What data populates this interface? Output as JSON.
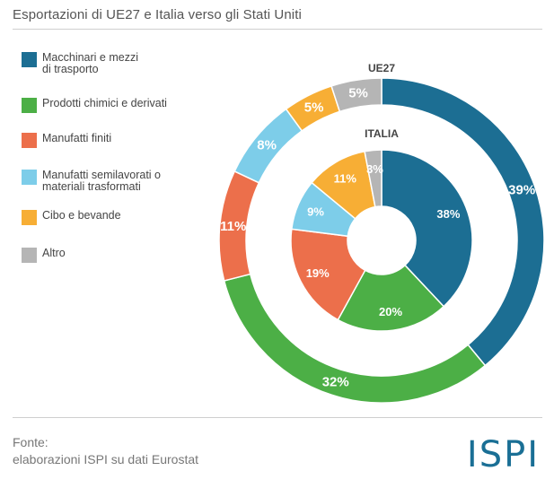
{
  "title": "Esportazioni di UE27 e Italia verso gli Stati Uniti",
  "footer": {
    "source_label": "Fonte:",
    "source_text": "elaborazioni ISPI su dati Eurostat"
  },
  "logo": "ISPI",
  "chart_data": {
    "type": "donut",
    "categories": [
      "Macchinari e mezzi di trasporto",
      "Prodotti chimici e derivati",
      "Manufatti finiti",
      "Manufatti semilavorati o materiali trasformati",
      "Cibo e bevande",
      "Altro"
    ],
    "colors": [
      "#1c6e93",
      "#4caf46",
      "#ec6f4b",
      "#7dcde9",
      "#f7ae35",
      "#b5b5b5"
    ],
    "series": [
      {
        "name": "UE27",
        "ring": "outer",
        "values": [
          39,
          32,
          11,
          8,
          5,
          5
        ],
        "labels": [
          "39%",
          "32%",
          "11%",
          "8%",
          "5%",
          "5%"
        ]
      },
      {
        "name": "ITALIA",
        "ring": "inner",
        "values": [
          38,
          20,
          19,
          9,
          11,
          3
        ],
        "labels": [
          "38%",
          "20%",
          "19%",
          "9%",
          "11%",
          "3%"
        ]
      }
    ],
    "legend": {
      "position": "left",
      "entries": [
        "Macchinari e mezzi\ndi trasporto",
        "Prodotti chimici e derivati",
        "Manufatti finiti",
        "Manufatti semilavorati o\nmateriali trasformati",
        "Cibo e bevande",
        "Altro"
      ]
    }
  }
}
